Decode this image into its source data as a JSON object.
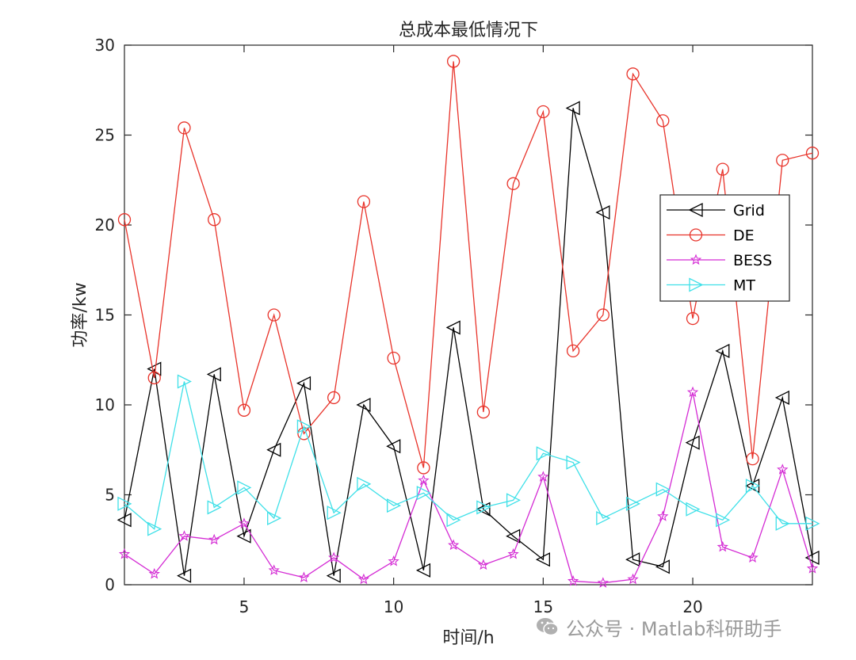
{
  "chart_data": {
    "type": "line",
    "title": "总成本最低情况下",
    "xlabel": "时间/h",
    "ylabel": "功率/kw",
    "xlim": [
      1,
      24
    ],
    "ylim": [
      0,
      30
    ],
    "xticks": [
      5,
      10,
      15,
      20
    ],
    "yticks": [
      0,
      5,
      10,
      15,
      20,
      25,
      30
    ],
    "grid": false,
    "legend_position": "upper-right",
    "x": [
      1,
      2,
      3,
      4,
      5,
      6,
      7,
      8,
      9,
      10,
      11,
      12,
      13,
      14,
      15,
      16,
      17,
      18,
      19,
      20,
      21,
      22,
      23,
      24
    ],
    "series": [
      {
        "name": "Grid",
        "color": "#000000",
        "marker": "triangle-left",
        "values": [
          3.6,
          12.0,
          0.5,
          11.7,
          2.7,
          7.5,
          11.2,
          0.5,
          10.0,
          7.7,
          0.8,
          14.3,
          4.2,
          2.7,
          1.4,
          26.5,
          20.7,
          1.4,
          1.0,
          7.9,
          13.0,
          5.5,
          10.4,
          1.5
        ]
      },
      {
        "name": "DE",
        "color": "#e8332a",
        "marker": "circle",
        "values": [
          20.3,
          11.5,
          25.4,
          20.3,
          9.7,
          15.0,
          8.4,
          10.4,
          21.3,
          12.6,
          6.5,
          29.1,
          9.6,
          22.3,
          26.3,
          13.0,
          15.0,
          28.4,
          25.8,
          14.8,
          23.1,
          7.0,
          23.6,
          24.0
        ]
      },
      {
        "name": "BESS",
        "color": "#d42bd4",
        "marker": "star",
        "values": [
          1.7,
          0.6,
          2.7,
          2.5,
          3.4,
          0.8,
          0.4,
          1.5,
          0.3,
          1.3,
          5.8,
          2.2,
          1.1,
          1.7,
          6.0,
          0.2,
          0.1,
          0.3,
          3.8,
          10.7,
          2.1,
          1.5,
          6.4,
          0.9
        ]
      },
      {
        "name": "MT",
        "color": "#3fe0e8",
        "marker": "triangle-right",
        "values": [
          4.5,
          3.1,
          11.3,
          4.3,
          5.4,
          3.7,
          8.8,
          4.0,
          5.6,
          4.4,
          5.1,
          3.6,
          4.3,
          4.7,
          7.3,
          6.8,
          3.7,
          4.5,
          5.3,
          4.2,
          3.6,
          5.5,
          3.4,
          3.4
        ]
      }
    ]
  },
  "watermark": {
    "icon": "wechat-icon",
    "text": "公众号 · Matlab科研助手"
  }
}
